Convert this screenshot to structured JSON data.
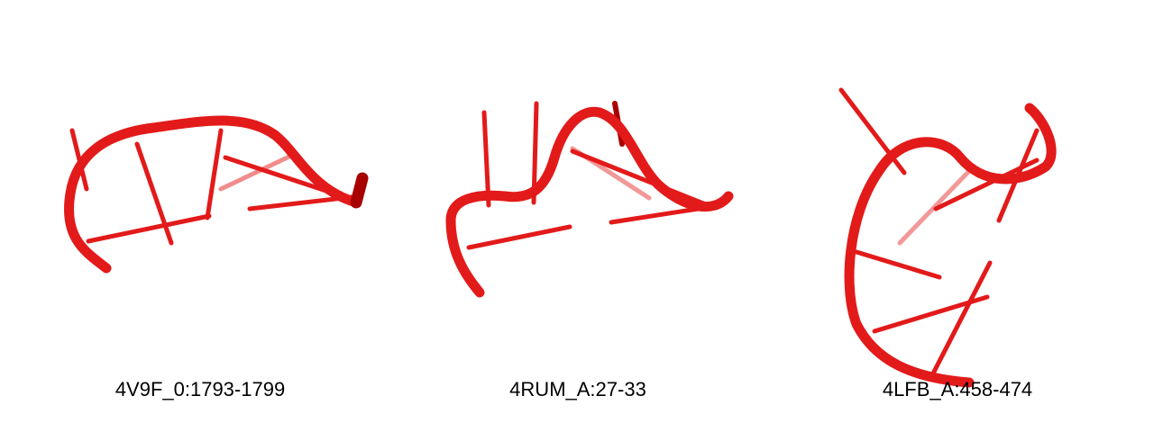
{
  "colors": {
    "backbone": "#e31a1a",
    "backbone_dark": "#a80000",
    "background": "#ffffff"
  },
  "panels": [
    {
      "label": "4V9F_0:1793-1799"
    },
    {
      "label": "4RUM_A:27-33"
    },
    {
      "label": "4LFB_A:458-474"
    }
  ]
}
